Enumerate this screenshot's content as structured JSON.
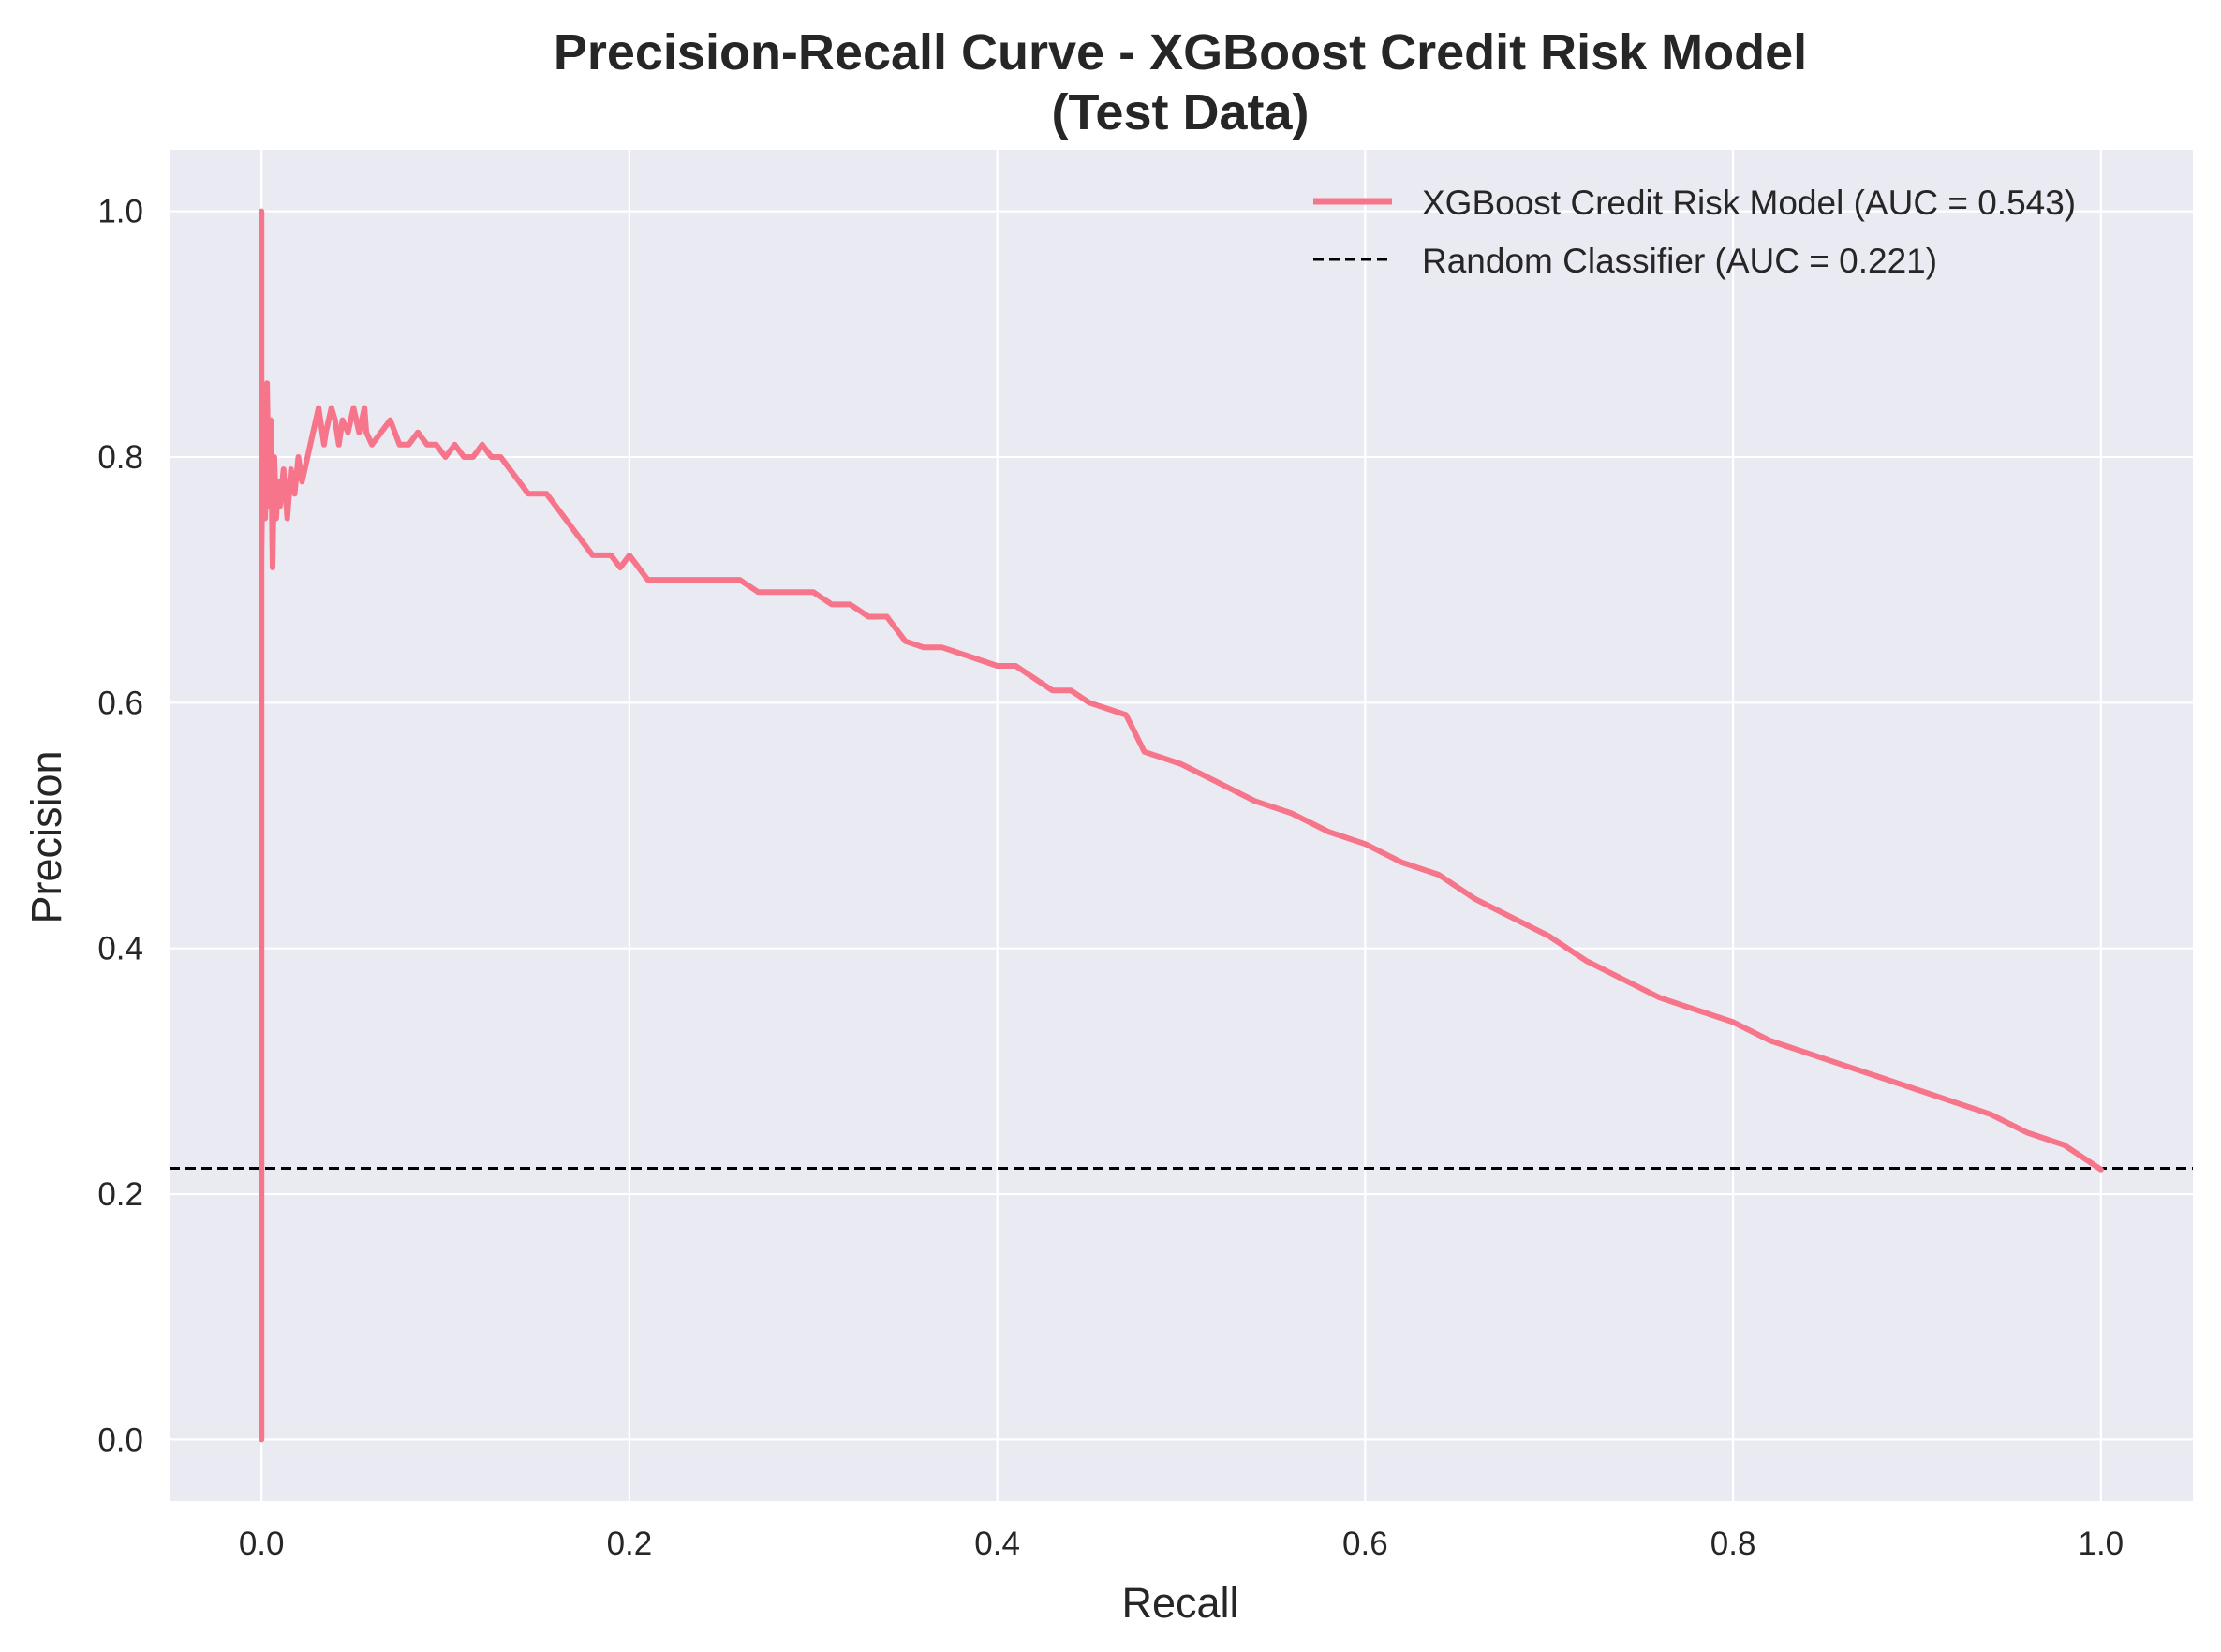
{
  "chart_data": {
    "type": "line",
    "title": "Precision-Recall Curve - XGBoost Credit Risk Model",
    "subtitle": "(Test Data)",
    "xlabel": "Recall",
    "ylabel": "Precision",
    "xlim": [
      -0.05,
      1.05
    ],
    "ylim": [
      -0.05,
      1.05
    ],
    "x_ticks": [
      0.0,
      0.2,
      0.4,
      0.6,
      0.8,
      1.0
    ],
    "x_tick_labels": [
      "0.0",
      "0.2",
      "0.4",
      "0.6",
      "0.8",
      "1.0"
    ],
    "y_ticks": [
      0.0,
      0.2,
      0.4,
      0.6,
      0.8,
      1.0
    ],
    "y_tick_labels": [
      "0.0",
      "0.2",
      "0.4",
      "0.6",
      "0.8",
      "1.0"
    ],
    "grid": true,
    "legend_position": "top-right",
    "background_color": "#eaeaf2",
    "series": [
      {
        "name": "XGBoost Credit Risk Model (AUC = 0.543)",
        "color": "#f7758a",
        "style": "solid",
        "x": [
          0.0,
          0.0,
          0.0,
          0.001,
          0.002,
          0.003,
          0.004,
          0.005,
          0.006,
          0.007,
          0.008,
          0.009,
          0.01,
          0.012,
          0.014,
          0.016,
          0.018,
          0.02,
          0.022,
          0.025,
          0.028,
          0.031,
          0.034,
          0.035,
          0.038,
          0.04,
          0.042,
          0.044,
          0.047,
          0.05,
          0.053,
          0.056,
          0.057,
          0.06,
          0.065,
          0.07,
          0.075,
          0.08,
          0.085,
          0.09,
          0.095,
          0.1,
          0.105,
          0.11,
          0.115,
          0.12,
          0.125,
          0.13,
          0.135,
          0.14,
          0.145,
          0.15,
          0.155,
          0.16,
          0.165,
          0.17,
          0.175,
          0.18,
          0.185,
          0.19,
          0.195,
          0.2,
          0.21,
          0.22,
          0.23,
          0.24,
          0.25,
          0.26,
          0.27,
          0.28,
          0.29,
          0.3,
          0.31,
          0.32,
          0.33,
          0.34,
          0.35,
          0.36,
          0.37,
          0.38,
          0.39,
          0.4,
          0.41,
          0.42,
          0.43,
          0.44,
          0.45,
          0.46,
          0.47,
          0.48,
          0.49,
          0.5,
          0.52,
          0.54,
          0.56,
          0.58,
          0.6,
          0.62,
          0.64,
          0.66,
          0.68,
          0.7,
          0.72,
          0.74,
          0.76,
          0.78,
          0.8,
          0.82,
          0.84,
          0.86,
          0.88,
          0.9,
          0.92,
          0.94,
          0.96,
          0.98,
          1.0
        ],
        "y": [
          0.0,
          1.0,
          0.72,
          0.85,
          0.75,
          0.86,
          0.76,
          0.83,
          0.71,
          0.8,
          0.75,
          0.78,
          0.76,
          0.79,
          0.75,
          0.79,
          0.77,
          0.8,
          0.78,
          0.8,
          0.82,
          0.84,
          0.81,
          0.82,
          0.84,
          0.83,
          0.81,
          0.83,
          0.82,
          0.84,
          0.82,
          0.84,
          0.82,
          0.81,
          0.82,
          0.83,
          0.81,
          0.81,
          0.82,
          0.81,
          0.81,
          0.8,
          0.81,
          0.8,
          0.8,
          0.81,
          0.8,
          0.8,
          0.79,
          0.78,
          0.77,
          0.77,
          0.77,
          0.76,
          0.75,
          0.74,
          0.73,
          0.72,
          0.72,
          0.72,
          0.71,
          0.72,
          0.7,
          0.7,
          0.7,
          0.7,
          0.7,
          0.7,
          0.69,
          0.69,
          0.69,
          0.69,
          0.68,
          0.68,
          0.67,
          0.67,
          0.65,
          0.645,
          0.645,
          0.64,
          0.635,
          0.63,
          0.63,
          0.62,
          0.61,
          0.61,
          0.6,
          0.595,
          0.59,
          0.56,
          0.555,
          0.55,
          0.535,
          0.52,
          0.51,
          0.495,
          0.485,
          0.47,
          0.46,
          0.44,
          0.425,
          0.41,
          0.39,
          0.375,
          0.36,
          0.35,
          0.34,
          0.325,
          0.315,
          0.305,
          0.295,
          0.285,
          0.275,
          0.265,
          0.25,
          0.24,
          0.22
        ]
      },
      {
        "name": "Random Classifier (AUC = 0.221)",
        "color": "#000000",
        "style": "dashed",
        "y_constant": 0.221
      }
    ]
  }
}
